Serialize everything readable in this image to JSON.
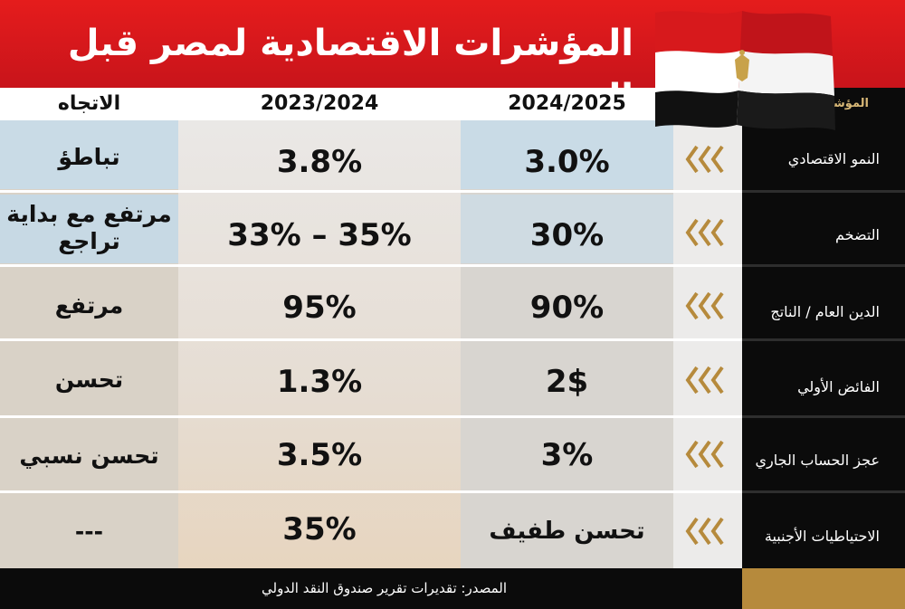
{
  "title": "المؤشرات الاقتصادية لمصر قبل الحرب",
  "headers": {
    "trend": "الاتجاه",
    "year_2023_2024": "2023/2024",
    "year_2024_2025": "2024/2025",
    "indicator": "المؤشر"
  },
  "rows": [
    {
      "indicator": "النمو الاقتصادي",
      "y2425": "3.0%",
      "y2324": "3.8%",
      "trend": "تباطؤ"
    },
    {
      "indicator": "التضخم",
      "y2425": "30%",
      "y2324": "33% – 35%",
      "trend": "مرتفع مع بداية تراجع"
    },
    {
      "indicator": "الدين العام / الناتج",
      "y2425": "90%",
      "y2324": "95%",
      "trend": "مرتفع"
    },
    {
      "indicator": "الفائض الأولي",
      "y2425": "2$",
      "y2324": "1.3%",
      "trend": "تحسن"
    },
    {
      "indicator": "عجز الحساب الجاري",
      "y2425": "3%",
      "y2324": "3.5%",
      "trend": "تحسن نسبي"
    },
    {
      "indicator": "الاحتياطيات الأجنبية",
      "y2425": "تحسن طفيف",
      "y2324": "35%",
      "trend": "---"
    }
  ],
  "footer": {
    "source": "المصدر: تقديرات تقرير صندوق النقد الدولي"
  },
  "colors": {
    "title_red": "#d7191c",
    "gold": "#b68a3c",
    "black": "#0b0b0b"
  },
  "icons": {
    "row_marker": "triple-chevron-left-icon",
    "flag": "egypt-flag-icon"
  }
}
